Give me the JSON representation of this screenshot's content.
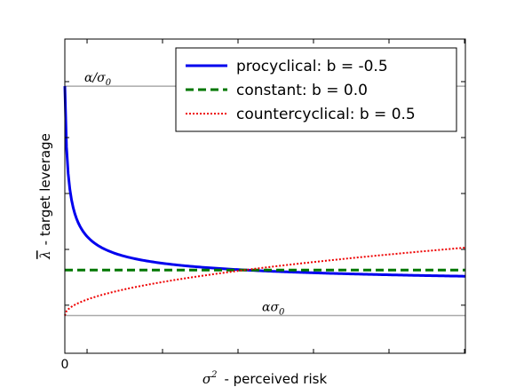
{
  "chart_data": {
    "type": "line",
    "xlabel_sym": "σ",
    "xlabel_sup": "2",
    "xlabel_text": "- perceived risk",
    "ylabel_sym": "λ",
    "ylabel_text": "- target leverage",
    "x_tick_labels": [
      "0"
    ],
    "xlim": [
      0,
      1
    ],
    "ylim": [
      0,
      1
    ],
    "reference_lines": [
      {
        "label": "α/σ",
        "label_sub": "0",
        "y": 0.85,
        "color": "#aaaaaa"
      },
      {
        "label": "ασ",
        "label_sub": "0",
        "y": 0.12,
        "color": "#aaaaaa"
      }
    ],
    "series": [
      {
        "name": "procyclical: b = -0.5",
        "b": -0.5,
        "color": "#0000ee",
        "style": "solid"
      },
      {
        "name": "constant: b = 0.0",
        "b": 0.0,
        "color": "#007700",
        "style": "dashed"
      },
      {
        "name": "countercyclical: b = 0.5",
        "b": 0.5,
        "color": "#ee0000",
        "style": "dotted"
      }
    ],
    "legend_placement": "top-right",
    "grid": false
  }
}
